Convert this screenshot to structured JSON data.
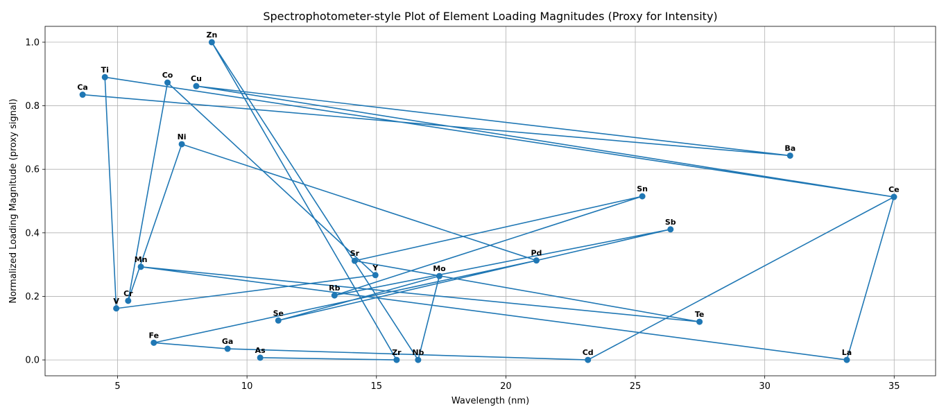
{
  "chart_data": {
    "type": "line",
    "title": "Spectrophotometer-style Plot of Element Loading Magnitudes (Proxy for Intensity)",
    "xlabel": "Wavelength (nm)",
    "ylabel": "Normalized Loading Magnitude (proxy signal)",
    "xlim": [
      2.2,
      36.6
    ],
    "ylim": [
      -0.05,
      1.05
    ],
    "xticks": [
      5,
      10,
      15,
      20,
      25,
      30,
      35
    ],
    "xtick_labels": [
      "5",
      "10",
      "15",
      "20",
      "25",
      "30",
      "35"
    ],
    "yticks": [
      0.0,
      0.2,
      0.4,
      0.6,
      0.8,
      1.0
    ],
    "ytick_labels": [
      "0.0",
      "0.2",
      "0.4",
      "0.6",
      "0.8",
      "1.0"
    ],
    "grid": true,
    "marker": "circle",
    "color": "#1f77b4",
    "points": [
      {
        "label": "Ca",
        "x": 3.65,
        "y": 0.835
      },
      {
        "label": "Ba",
        "x": 30.98,
        "y": 0.643
      },
      {
        "label": "Cu",
        "x": 8.04,
        "y": 0.862
      },
      {
        "label": "Ce",
        "x": 34.99,
        "y": 0.513
      },
      {
        "label": "Ti",
        "x": 4.51,
        "y": 0.89
      },
      {
        "label": "V",
        "x": 4.95,
        "y": 0.162
      },
      {
        "label": "Y",
        "x": 14.96,
        "y": 0.267
      },
      {
        "label": "Co",
        "x": 6.93,
        "y": 0.873
      },
      {
        "label": "Cr",
        "x": 5.41,
        "y": 0.186
      },
      {
        "label": "Ni",
        "x": 7.48,
        "y": 0.679
      },
      {
        "label": "Pd",
        "x": 21.18,
        "y": 0.313
      },
      {
        "label": "Fe",
        "x": 6.4,
        "y": 0.054
      },
      {
        "label": "Ga",
        "x": 9.25,
        "y": 0.035
      },
      {
        "label": "Cd",
        "x": 23.17,
        "y": 0.0
      },
      {
        "label": "Ce",
        "x": 34.99,
        "y": 0.513
      },
      {
        "label": "La",
        "x": 33.17,
        "y": 0.0
      },
      {
        "label": "Mn",
        "x": 5.9,
        "y": 0.293
      },
      {
        "label": "Te",
        "x": 27.48,
        "y": 0.12
      },
      {
        "label": "Sr",
        "x": 14.16,
        "y": 0.312
      },
      {
        "label": "Sn",
        "x": 25.27,
        "y": 0.515
      },
      {
        "label": "Rb",
        "x": 13.38,
        "y": 0.203
      },
      {
        "label": "Sb",
        "x": 26.36,
        "y": 0.411
      },
      {
        "label": "Se",
        "x": 11.21,
        "y": 0.124
      },
      {
        "label": "Mo",
        "x": 17.43,
        "y": 0.264
      },
      {
        "label": "Nb",
        "x": 16.61,
        "y": 0.0
      },
      {
        "label": "Zn",
        "x": 8.64,
        "y": 1.0
      },
      {
        "label": "Zr",
        "x": 15.78,
        "y": 0.0
      },
      {
        "label": "As",
        "x": 10.51,
        "y": 0.007
      }
    ]
  }
}
